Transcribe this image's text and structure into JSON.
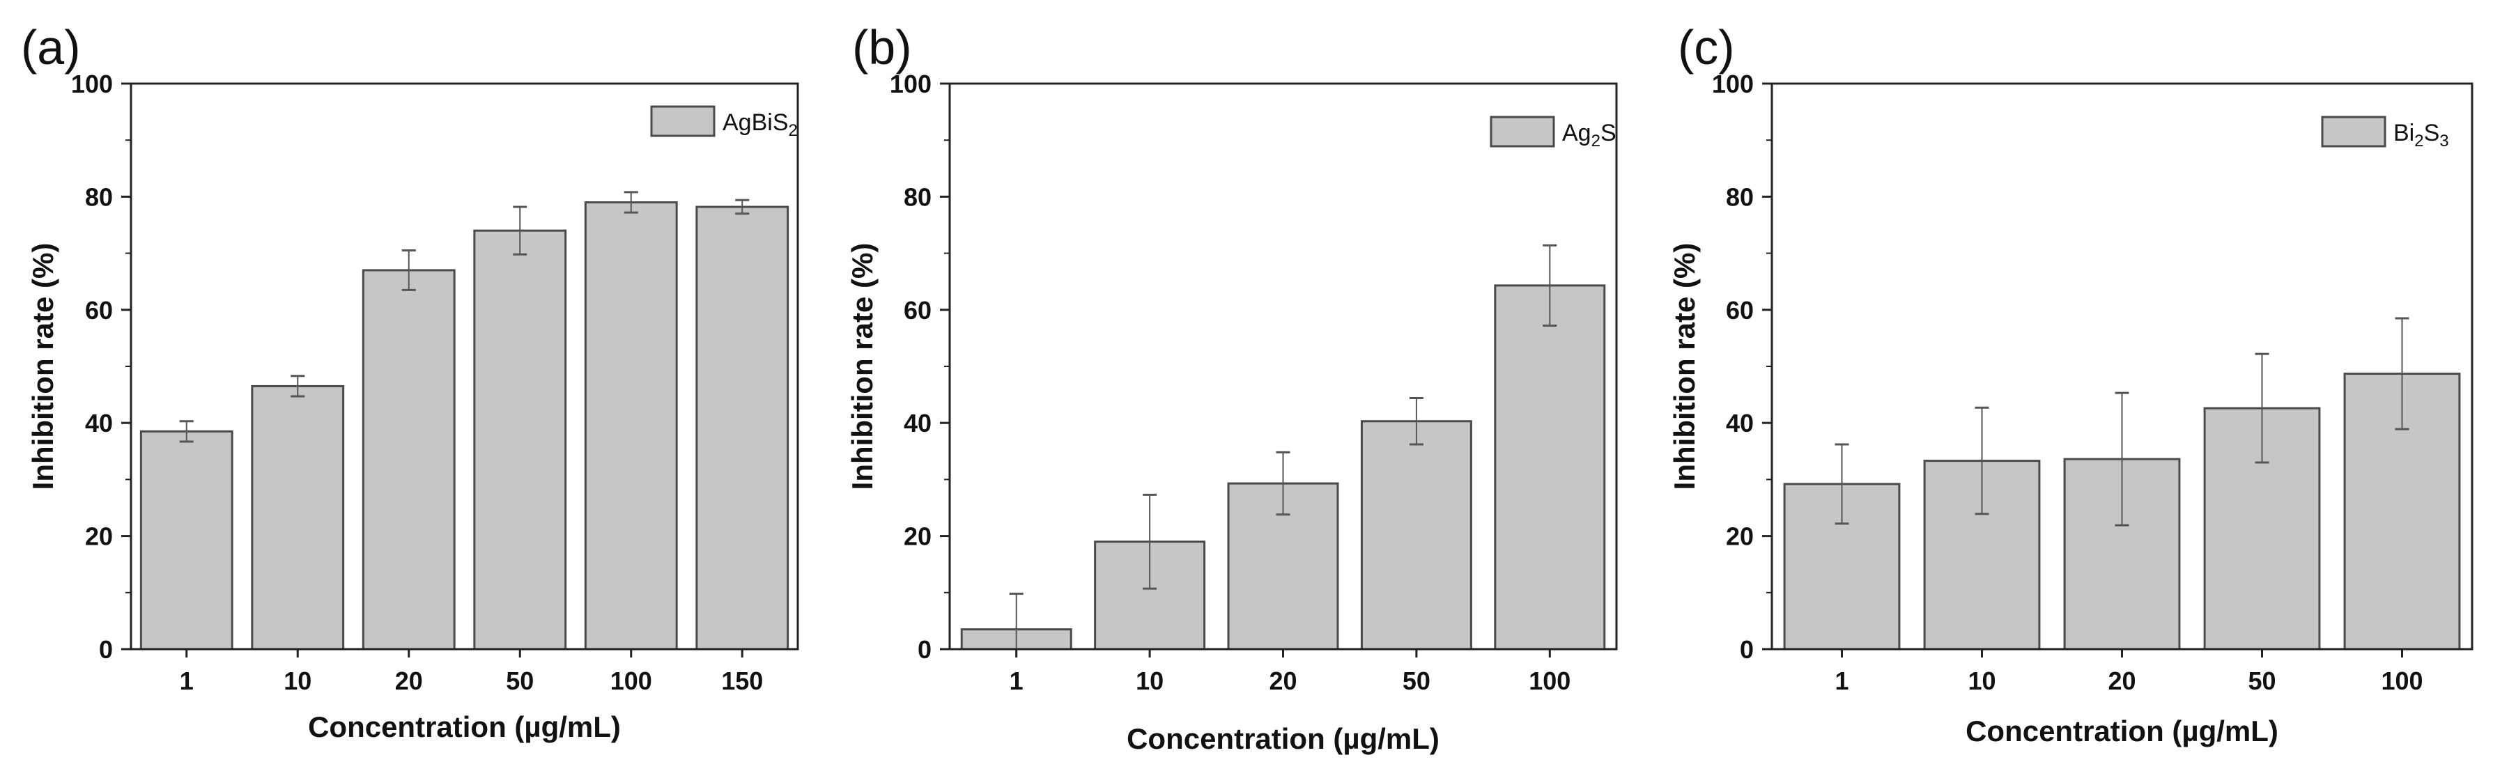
{
  "figure": {
    "bar_fill": "#c6c6c6",
    "bar_stroke": "#4a4a4a",
    "axis_color": "#222222",
    "error_color": "#555555"
  },
  "chart_data": [
    {
      "panel": "(a)",
      "type": "bar",
      "categories": [
        "1",
        "10",
        "20",
        "50",
        "100",
        "150"
      ],
      "series": [
        {
          "values": [
            38.5,
            46.5,
            67,
            74,
            79,
            78.2
          ],
          "errors": [
            1.8,
            1.8,
            3.5,
            4.2,
            1.8,
            1.2
          ]
        }
      ],
      "legend": {
        "base": "AgBiS",
        "sub": "2"
      },
      "xlabel": "Concentration (µg/mL)",
      "ylabel": "Inhibition rate (%)",
      "ylim": [
        0,
        100
      ],
      "yticks": [
        0,
        20,
        40,
        60,
        80,
        100
      ],
      "grid": false,
      "legend_position": "top-right"
    },
    {
      "panel": "(b)",
      "type": "bar",
      "categories": [
        "1",
        "10",
        "20",
        "50",
        "100"
      ],
      "series": [
        {
          "values": [
            3.5,
            19,
            29.3,
            40.3,
            64.3
          ],
          "errors": [
            6.3,
            8.3,
            5.5,
            4.1,
            7.1
          ]
        }
      ],
      "legend": {
        "base": "Ag",
        "sub": "2",
        "rest": "S"
      },
      "xlabel": "Concentration (µg/mL)",
      "ylabel": "Inhibition rate (%)",
      "ylim": [
        0,
        100
      ],
      "yticks": [
        0,
        20,
        40,
        60,
        80,
        100
      ],
      "grid": false,
      "legend_position": "top-right"
    },
    {
      "panel": "(c)",
      "type": "bar",
      "categories": [
        "1",
        "10",
        "20",
        "50",
        "100"
      ],
      "series": [
        {
          "values": [
            29.2,
            33.3,
            33.6,
            42.6,
            48.7
          ],
          "errors": [
            7,
            9.4,
            11.7,
            9.6,
            9.8
          ]
        }
      ],
      "legend": {
        "base": "Bi",
        "sub": "2",
        "rest": "S",
        "sub2": "3"
      },
      "xlabel": "Concentration (µg/mL)",
      "ylabel": "Inhibition rate (%)",
      "ylim": [
        0,
        100
      ],
      "yticks": [
        0,
        20,
        40,
        60,
        80,
        100
      ],
      "grid": false,
      "legend_position": "top-right"
    }
  ]
}
